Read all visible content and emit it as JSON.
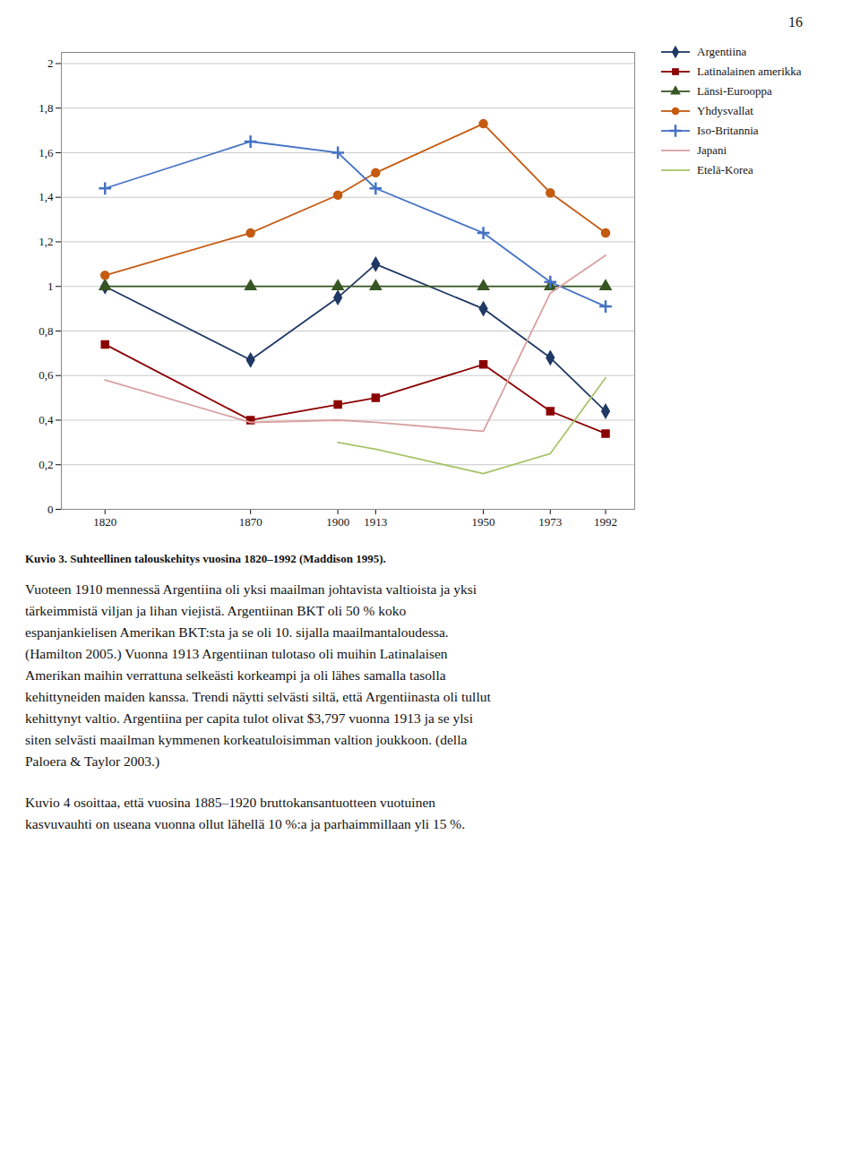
{
  "chart_data": {
    "type": "line",
    "x": [
      1820,
      1870,
      1900,
      1913,
      1950,
      1973,
      1992
    ],
    "series": [
      {
        "name": "Argentiina",
        "color": "#1F3864",
        "marker": "diamond",
        "values": [
          1.0,
          0.67,
          0.95,
          1.1,
          0.9,
          0.68,
          0.44
        ]
      },
      {
        "name": "Latinalainen amerikka",
        "color": "#8B0000",
        "marker": "square",
        "values": [
          0.74,
          0.4,
          0.47,
          0.5,
          0.65,
          0.44,
          0.34
        ]
      },
      {
        "name": "Länsi-Eurooppa",
        "color": "#375623",
        "marker": "triangle",
        "values": [
          1.0,
          1.0,
          1.0,
          1.0,
          1.0,
          1.0,
          1.0
        ]
      },
      {
        "name": "Yhdysvallat",
        "color": "#C55A11",
        "marker": "circle",
        "values": [
          1.05,
          1.24,
          1.41,
          1.51,
          1.73,
          1.42,
          1.24
        ]
      },
      {
        "name": "Iso-Britannia",
        "color": "#4472C4",
        "marker": "plus",
        "values": [
          1.44,
          1.65,
          1.6,
          1.44,
          1.24,
          1.02,
          0.91
        ]
      },
      {
        "name": "Japani",
        "color": "#D9A0A0",
        "values": [
          0.58,
          0.39,
          0.4,
          0.39,
          0.35,
          0.97,
          1.14
        ]
      },
      {
        "name": "Etelä-Korea",
        "color": "#A9C46B",
        "values": [
          null,
          null,
          0.3,
          0.27,
          0.16,
          0.25,
          0.59
        ]
      }
    ],
    "xlim": [
      1805,
      2002
    ],
    "xticks": [
      1820,
      1870,
      1900,
      1913,
      1950,
      1973,
      1992
    ],
    "ylim": [
      0,
      2.05
    ],
    "yticks": [
      0,
      {
        "value": 0.2,
        "label": "0,2"
      },
      {
        "value": 0.4,
        "label": "0,4"
      },
      {
        "value": 0.6,
        "label": "0,6"
      },
      {
        "value": 0.8,
        "label": "0,8"
      },
      1,
      {
        "value": 1.2,
        "label": "1,2"
      },
      {
        "value": 1.4,
        "label": "1,4"
      },
      {
        "value": 1.6,
        "label": "1,6"
      },
      {
        "value": 1.8,
        "label": "1,8"
      },
      2
    ],
    "grid": true,
    "legend": "upper right",
    "caption": "Kuvio 3. Suhteellinen talouskehitys vuosina 1820–1992 (Maddison 1995).",
    "annotations": [
      "16",
      "Vuoteen 1910 mennessä Argentiina oli yksi maailman johtavista valtioista ja yksi\ntärkeimmistä viljan ja lihan viejistä. Argentiinan BKT oli 50 % koko\nespanjankielisen Amerikan BKT:sta ja se oli 10. sijalla maailmantaloudessa.\n(Hamilton 2005.) Vuonna 1913 Argentiinan tulotaso oli muihin Latinalaisen\nAmerikan maihin verrattuna selkeästi korkeampi ja oli lähes samalla tasolla\nkehittyneiden maiden kanssa. Trendi näytti selvästi siltä, että Argentiinasta oli tullut\nkehittynyt valtio. Argentiina per capita tulot olivat $3,797 vuonna 1913 ja se ylsi\nsiten selvästi maailman kymmenen korkeatuloisimman valtion joukkoon. (della\nPaloera & Taylor 2003.)",
      "Kuvio 4 osoittaa, että vuosina 1885–1920 bruttokansantuotteen vuotuinen\nkasvuvauhti on useana vuonna ollut lähellä 10 %:a ja parhaimmillaan yli 15 %."
    ]
  }
}
